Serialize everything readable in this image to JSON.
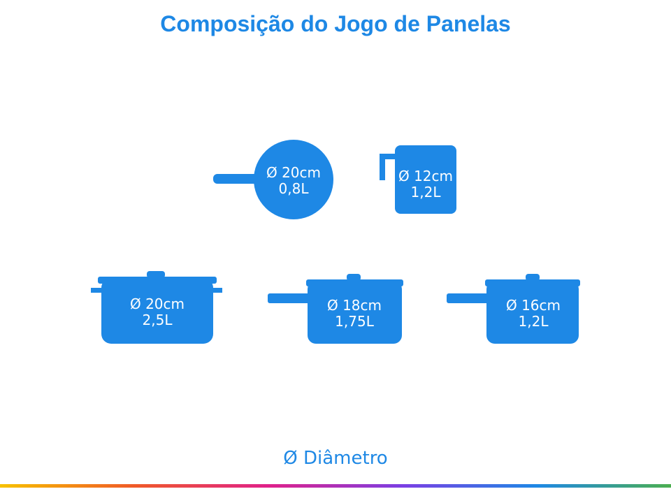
{
  "header": {
    "title": "Composição do Jogo de Panelas"
  },
  "items": [
    {
      "diameter": "Ø 20cm",
      "volume": "0,8L"
    },
    {
      "diameter": "Ø 12cm",
      "volume": "1,2L"
    },
    {
      "diameter": "Ø 20cm",
      "volume": "2,5L"
    },
    {
      "diameter": "Ø 18cm",
      "volume": "1,75L"
    },
    {
      "diameter": "Ø 16cm",
      "volume": "1,2L"
    }
  ],
  "footer": {
    "legend": "Ø Diâmetro"
  }
}
